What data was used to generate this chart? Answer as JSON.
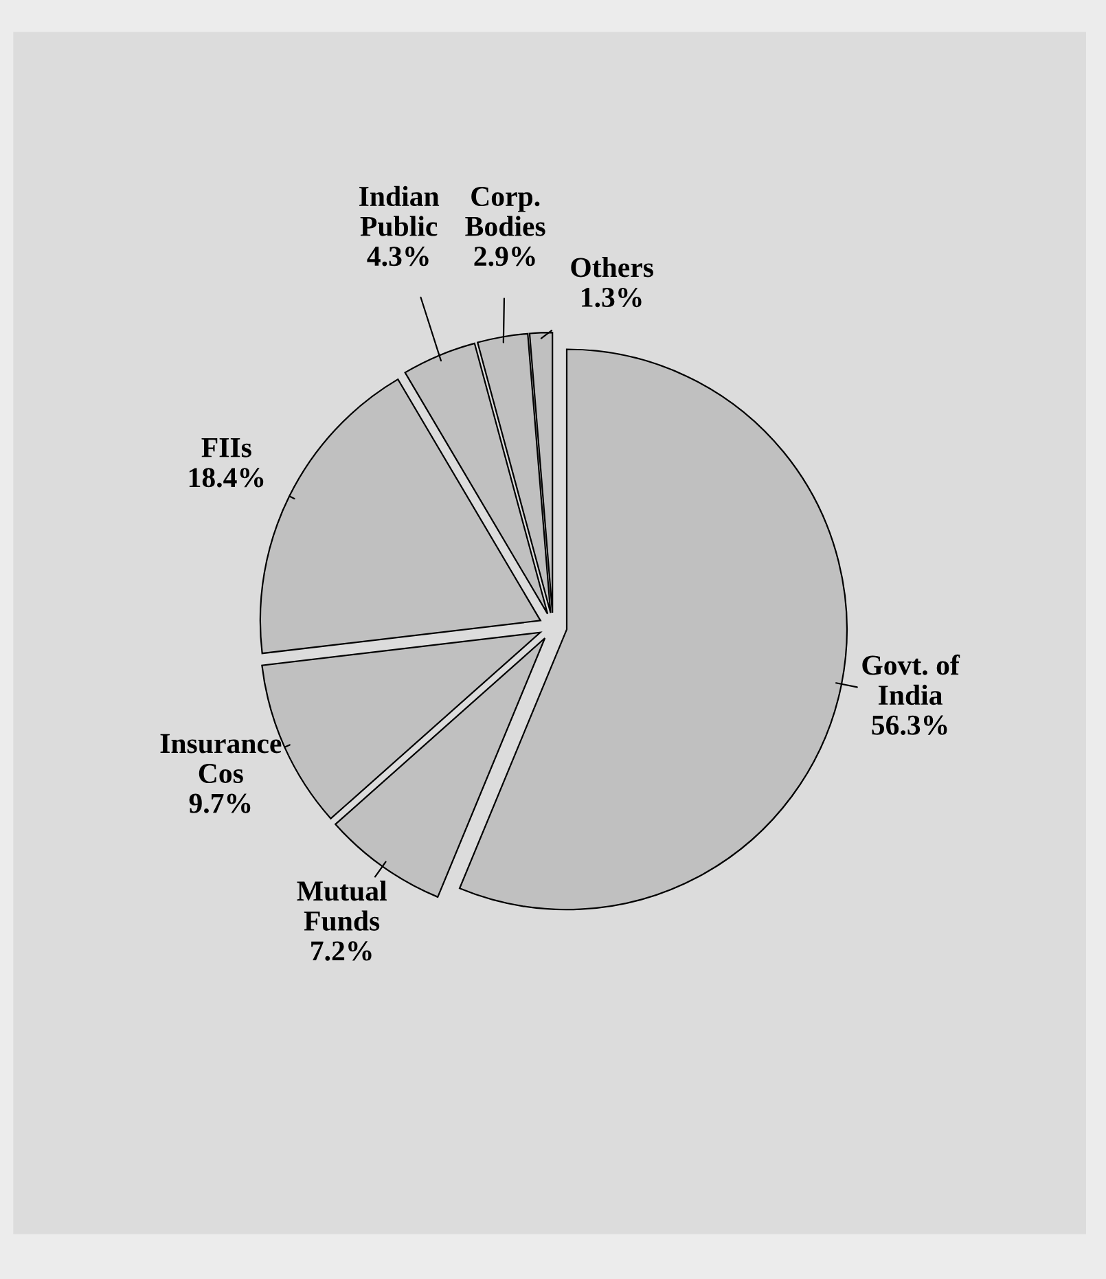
{
  "chart_data": {
    "type": "pie",
    "categories": [
      "Govt. of India",
      "Mutual Funds",
      "Insurance Cos",
      "FIIs",
      "Indian Public",
      "Corp. Bodies",
      "Others"
    ],
    "values": [
      56.3,
      7.2,
      9.7,
      18.4,
      4.3,
      2.9,
      1.3
    ],
    "value_labels": [
      "56.3%",
      "7.2%",
      "9.7%",
      "18.4%",
      "4.3%",
      "2.9%",
      "1.3%"
    ],
    "colors": [
      "#c0c0c0",
      "#c0c0c0",
      "#c0c0c0",
      "#c0c0c0",
      "#c0c0c0",
      "#c0c0c0",
      "#c0c0c0"
    ]
  }
}
